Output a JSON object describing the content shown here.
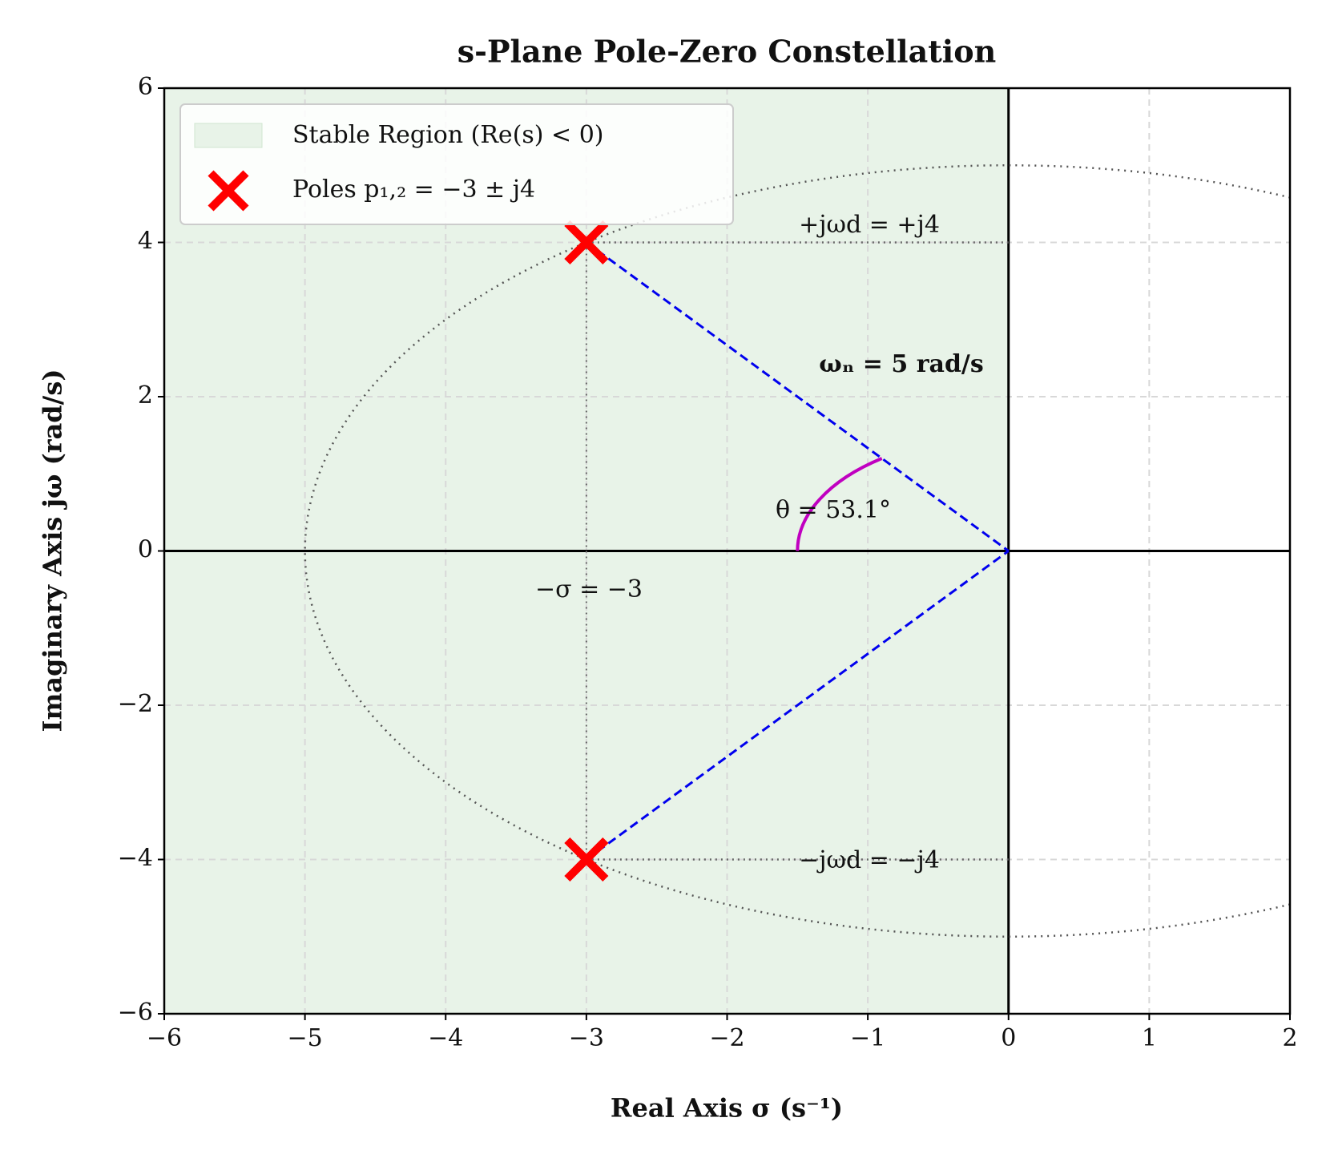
{
  "chart_data": {
    "type": "scatter",
    "title": "s-Plane Pole-Zero Constellation",
    "x_label": "Real Axis σ (s⁻¹)",
    "y_label": "Imaginary Axis jω (rad/s)",
    "xlim": [
      -6,
      2
    ],
    "ylim": [
      -6,
      6
    ],
    "xticks": [
      {
        "value": -6,
        "label": "−6"
      },
      {
        "value": -5,
        "label": "−5"
      },
      {
        "value": -4,
        "label": "−4"
      },
      {
        "value": -3,
        "label": "−3"
      },
      {
        "value": -2,
        "label": "−2"
      },
      {
        "value": -1,
        "label": "−1"
      },
      0,
      1,
      2
    ],
    "yticks": [
      {
        "value": -6,
        "label": "−6"
      },
      {
        "value": -4,
        "label": "−4"
      },
      {
        "value": -2,
        "label": "−2"
      },
      0,
      2,
      4,
      6
    ],
    "grid": true,
    "legend": "upper left",
    "stable_region": {
      "name": "Stable Region (Re(s) < 0)",
      "x": [
        -6,
        0
      ],
      "color": "#e8f3e8"
    },
    "series": [
      {
        "name": "Poles p₁,₂ = −3 ± j4",
        "color": "#ff0000",
        "x": [
          -3,
          -3
        ],
        "values": [
          4,
          -4
        ]
      }
    ],
    "circle_radius": 5,
    "annotations": [
      "+jωd = +j4",
      "−jωd = −j4",
      "ωₙ = 5 rad/s",
      "θ = 53.1°",
      "−σ = −3"
    ]
  }
}
